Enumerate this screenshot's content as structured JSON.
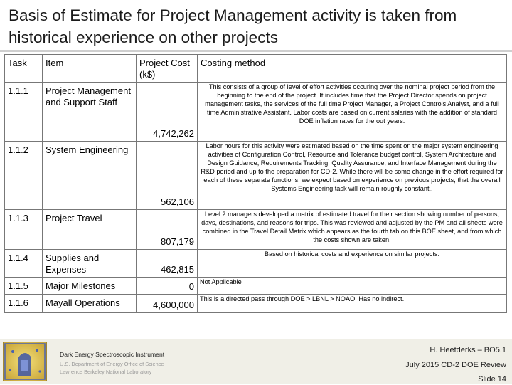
{
  "title": "Basis of Estimate for Project Management activity is taken from historical experience on other projects",
  "table": {
    "headers": {
      "task": "Task",
      "item": "Item",
      "cost": "Project Cost (k$)",
      "method": "Costing method"
    },
    "rows": [
      {
        "task": "1.1.1",
        "item": "Project Management and Support Staff",
        "cost": "4,742,262",
        "method": "This consists of a group of level of effort activities occuring over the nominal project period from the beginning to the end of the project. It includes time that the Project Director spends on project management tasks, the services of the full time Project Manager, a Project Controls Analyst, and a full time Administrative Assistant. Labor costs are based on current salaries with the addition of standard DOE inflation rates for the out years."
      },
      {
        "task": "1.1.2",
        "item": "System Engineering",
        "cost": "562,106",
        "method": "Labor hours for this activity were estimated based on the time spent on the major system engineering activities of Configuration Control, Resource and Tolerance budget control, System Architecture and Design Guidance, Requirements Tracking, Quality Assurance, and Interface Management during the R&D period and up to the preparation for CD-2. While there will be some change in the effort required for each of these separate functions, we expect based on experience on previous projects, that the overall Systems Engineering task will remain roughly constant.."
      },
      {
        "task": "1.1.3",
        "item": "Project Travel",
        "cost": "807,179",
        "method": "Level 2 managers developed a matrix of estimated travel for their section showing number of persons, days, destinations, and reasons for trips. This was reviewed and adjusted by the PM and all sheets were combined in the Travel Detail Matrix which appears as the fourth tab on this BOE sheet, and from which the costs shown are taken."
      },
      {
        "task": "1.1.4",
        "item": "Supplies and Expenses",
        "cost": "462,815",
        "method": "Based on historical costs and experience on similar projects."
      },
      {
        "task": "1.1.5",
        "item": "Major Milestones",
        "cost": "0",
        "method": "Not Applicable"
      },
      {
        "task": "1.1.6",
        "item": "Mayall Operations",
        "cost": "4,600,000",
        "method": "This is a directed pass through DOE > LBNL > NOAO. Has no indirect."
      }
    ]
  },
  "footer": {
    "instrument": "Dark Energy Spectroscopic Instrument",
    "department": "U.S. Department of Energy Office of Science",
    "lab": "Lawrence Berkeley National Laboratory",
    "presenter": "H. Heetderks – BO5.1",
    "review": "July 2015 CD-2 DOE Review",
    "slide": "Slide 14",
    "logo_icon": "desi-logo-icon"
  }
}
